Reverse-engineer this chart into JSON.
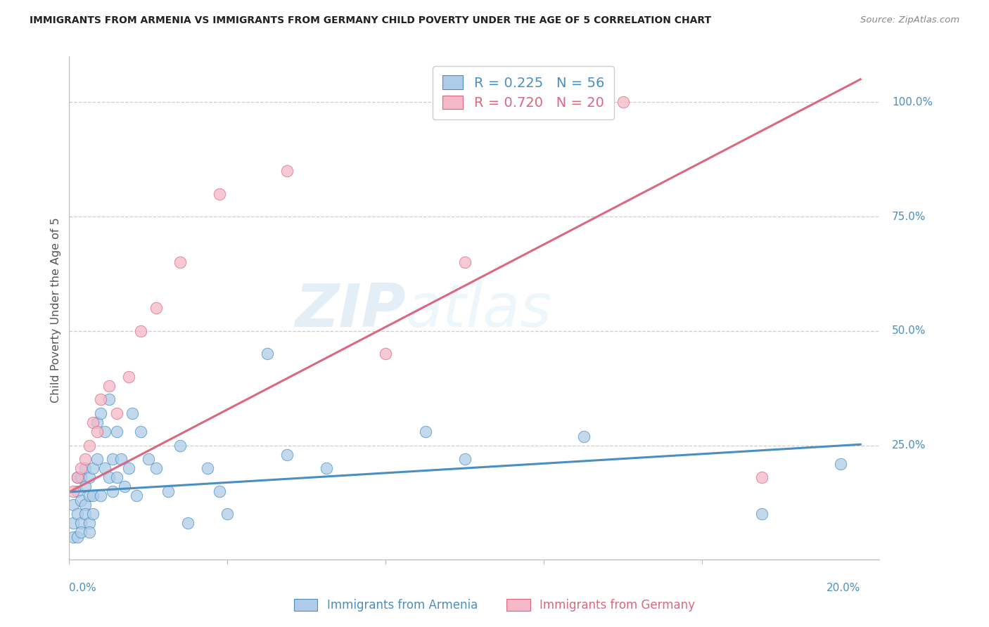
{
  "title": "IMMIGRANTS FROM ARMENIA VS IMMIGRANTS FROM GERMANY CHILD POVERTY UNDER THE AGE OF 5 CORRELATION CHART",
  "source": "Source: ZipAtlas.com",
  "ylabel": "Child Poverty Under the Age of 5",
  "armenia_color": "#aecce8",
  "germany_color": "#f5b8c8",
  "armenia_line_color": "#4a8fc0",
  "germany_line_color": "#d96880",
  "watermark_zip": "ZIP",
  "watermark_atlas": "atlas",
  "legend1_R": "R = 0.225",
  "legend1_N": "N = 56",
  "legend2_R": "R = 0.720",
  "legend2_N": "N = 20",
  "arm_x": [
    0.001,
    0.001,
    0.001,
    0.002,
    0.002,
    0.002,
    0.002,
    0.003,
    0.003,
    0.003,
    0.003,
    0.004,
    0.004,
    0.004,
    0.004,
    0.005,
    0.005,
    0.005,
    0.005,
    0.006,
    0.006,
    0.006,
    0.007,
    0.007,
    0.008,
    0.008,
    0.009,
    0.009,
    0.01,
    0.01,
    0.011,
    0.011,
    0.012,
    0.012,
    0.013,
    0.014,
    0.015,
    0.016,
    0.017,
    0.018,
    0.02,
    0.022,
    0.025,
    0.028,
    0.03,
    0.035,
    0.038,
    0.04,
    0.05,
    0.055,
    0.065,
    0.09,
    0.1,
    0.13,
    0.175,
    0.195
  ],
  "arm_y": [
    0.05,
    0.08,
    0.12,
    0.1,
    0.15,
    0.18,
    0.05,
    0.08,
    0.13,
    0.18,
    0.06,
    0.12,
    0.16,
    0.1,
    0.2,
    0.08,
    0.14,
    0.18,
    0.06,
    0.14,
    0.2,
    0.1,
    0.3,
    0.22,
    0.14,
    0.32,
    0.2,
    0.28,
    0.18,
    0.35,
    0.22,
    0.15,
    0.28,
    0.18,
    0.22,
    0.16,
    0.2,
    0.32,
    0.14,
    0.28,
    0.22,
    0.2,
    0.15,
    0.25,
    0.08,
    0.2,
    0.15,
    0.1,
    0.45,
    0.23,
    0.2,
    0.28,
    0.22,
    0.27,
    0.1,
    0.21
  ],
  "ger_x": [
    0.001,
    0.002,
    0.003,
    0.004,
    0.005,
    0.006,
    0.007,
    0.008,
    0.01,
    0.012,
    0.015,
    0.018,
    0.022,
    0.028,
    0.038,
    0.055,
    0.08,
    0.1,
    0.14,
    0.175
  ],
  "ger_y": [
    0.15,
    0.18,
    0.2,
    0.22,
    0.25,
    0.3,
    0.28,
    0.35,
    0.38,
    0.32,
    0.4,
    0.5,
    0.55,
    0.65,
    0.8,
    0.85,
    0.45,
    0.65,
    1.0,
    0.18
  ],
  "arm_line_x0": 0.0,
  "arm_line_x1": 0.2,
  "arm_line_y0": 0.148,
  "arm_line_y1": 0.252,
  "ger_line_x0": 0.0,
  "ger_line_x1": 0.2,
  "ger_line_y0": 0.148,
  "ger_line_y1": 1.05,
  "xlim": [
    0.0,
    0.205
  ],
  "ylim": [
    -0.01,
    1.1
  ],
  "ytick_vals": [
    0.25,
    0.5,
    0.75,
    1.0
  ],
  "ytick_labels": [
    "25.0%",
    "50.0%",
    "75.0%",
    "100.0%"
  ],
  "xtick_left": "0.0%",
  "xtick_right": "20.0%"
}
